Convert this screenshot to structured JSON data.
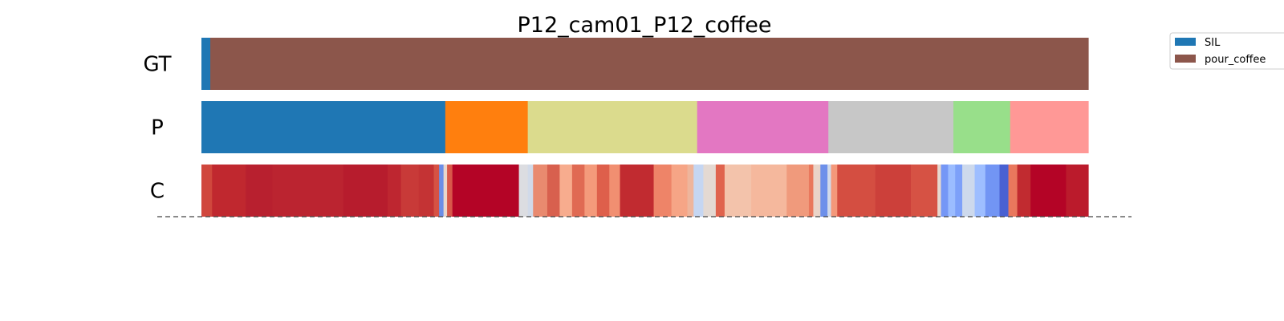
{
  "chart_data": {
    "type": "heatmap",
    "title": "P12_cam01_P12_coffee",
    "x_range": [
      0,
      1
    ],
    "rows": [
      {
        "label": "GT",
        "segments": [
          {
            "start": 0.0,
            "end": 0.01,
            "color": "#1f77b4"
          },
          {
            "start": 0.01,
            "end": 1.0,
            "color": "#8c564b"
          }
        ]
      },
      {
        "label": "P",
        "segments": [
          {
            "start": 0.0,
            "end": 0.275,
            "color": "#1f77b4"
          },
          {
            "start": 0.275,
            "end": 0.368,
            "color": "#ff7f0e"
          },
          {
            "start": 0.368,
            "end": 0.559,
            "color": "#dbdb8d"
          },
          {
            "start": 0.559,
            "end": 0.707,
            "color": "#e377c2"
          },
          {
            "start": 0.707,
            "end": 0.848,
            "color": "#c7c7c7"
          },
          {
            "start": 0.848,
            "end": 0.912,
            "color": "#98df8a"
          },
          {
            "start": 0.912,
            "end": 1.0,
            "color": "#ff9896"
          }
        ]
      },
      {
        "label": "C",
        "segments": [
          {
            "start": 0.0,
            "end": 0.012,
            "color": "#d0473d"
          },
          {
            "start": 0.012,
            "end": 0.05,
            "color": "#c0282f"
          },
          {
            "start": 0.05,
            "end": 0.08,
            "color": "#b8202f"
          },
          {
            "start": 0.08,
            "end": 0.16,
            "color": "#bb2430"
          },
          {
            "start": 0.16,
            "end": 0.21,
            "color": "#b71c2d"
          },
          {
            "start": 0.21,
            "end": 0.225,
            "color": "#be2630"
          },
          {
            "start": 0.225,
            "end": 0.245,
            "color": "#c83a38"
          },
          {
            "start": 0.245,
            "end": 0.262,
            "color": "#c43334"
          },
          {
            "start": 0.262,
            "end": 0.268,
            "color": "#d65244"
          },
          {
            "start": 0.268,
            "end": 0.273,
            "color": "#6b8ee8"
          },
          {
            "start": 0.273,
            "end": 0.277,
            "color": "#e8d6cc"
          },
          {
            "start": 0.277,
            "end": 0.283,
            "color": "#d8584a"
          },
          {
            "start": 0.283,
            "end": 0.358,
            "color": "#b40426"
          },
          {
            "start": 0.358,
            "end": 0.368,
            "color": "#dcdde1"
          },
          {
            "start": 0.368,
            "end": 0.374,
            "color": "#d1dae9"
          },
          {
            "start": 0.374,
            "end": 0.39,
            "color": "#e98a6f"
          },
          {
            "start": 0.39,
            "end": 0.404,
            "color": "#d8604e"
          },
          {
            "start": 0.404,
            "end": 0.418,
            "color": "#f7ac8e"
          },
          {
            "start": 0.418,
            "end": 0.432,
            "color": "#e06a53"
          },
          {
            "start": 0.432,
            "end": 0.446,
            "color": "#f49a7b"
          },
          {
            "start": 0.446,
            "end": 0.46,
            "color": "#de5f4b"
          },
          {
            "start": 0.46,
            "end": 0.472,
            "color": "#f18f71"
          },
          {
            "start": 0.472,
            "end": 0.51,
            "color": "#c12b30"
          },
          {
            "start": 0.51,
            "end": 0.53,
            "color": "#ee8468"
          },
          {
            "start": 0.53,
            "end": 0.548,
            "color": "#f6a586"
          },
          {
            "start": 0.548,
            "end": 0.555,
            "color": "#eeb59c"
          },
          {
            "start": 0.555,
            "end": 0.566,
            "color": "#c5d6f2"
          },
          {
            "start": 0.566,
            "end": 0.58,
            "color": "#e4d9d2"
          },
          {
            "start": 0.58,
            "end": 0.59,
            "color": "#e0634d"
          },
          {
            "start": 0.59,
            "end": 0.62,
            "color": "#f3c3ab"
          },
          {
            "start": 0.62,
            "end": 0.66,
            "color": "#f5b89d"
          },
          {
            "start": 0.66,
            "end": 0.685,
            "color": "#f09a7c"
          },
          {
            "start": 0.685,
            "end": 0.69,
            "color": "#e9785d"
          },
          {
            "start": 0.69,
            "end": 0.698,
            "color": "#ead4c8"
          },
          {
            "start": 0.698,
            "end": 0.706,
            "color": "#6d90ea"
          },
          {
            "start": 0.706,
            "end": 0.71,
            "color": "#d1dae9"
          },
          {
            "start": 0.71,
            "end": 0.717,
            "color": "#f4987a"
          },
          {
            "start": 0.717,
            "end": 0.76,
            "color": "#d44e41"
          },
          {
            "start": 0.76,
            "end": 0.8,
            "color": "#cc403a"
          },
          {
            "start": 0.8,
            "end": 0.83,
            "color": "#d65244"
          },
          {
            "start": 0.83,
            "end": 0.834,
            "color": "#e7d7ce"
          },
          {
            "start": 0.834,
            "end": 0.842,
            "color": "#7597f6"
          },
          {
            "start": 0.842,
            "end": 0.85,
            "color": "#9bbcff"
          },
          {
            "start": 0.85,
            "end": 0.858,
            "color": "#7da0f9"
          },
          {
            "start": 0.858,
            "end": 0.872,
            "color": "#cdd9ec"
          },
          {
            "start": 0.872,
            "end": 0.884,
            "color": "#9ebeff"
          },
          {
            "start": 0.884,
            "end": 0.9,
            "color": "#7295f4"
          },
          {
            "start": 0.9,
            "end": 0.91,
            "color": "#4961d2"
          },
          {
            "start": 0.91,
            "end": 0.92,
            "color": "#e9785d"
          },
          {
            "start": 0.92,
            "end": 0.935,
            "color": "#c12b30"
          },
          {
            "start": 0.935,
            "end": 0.975,
            "color": "#b40426"
          },
          {
            "start": 0.975,
            "end": 1.0,
            "color": "#bb1b2c"
          }
        ]
      }
    ],
    "legend": {
      "position": "top-right",
      "entries": [
        {
          "label": "SIL",
          "color": "#1f77b4"
        },
        {
          "label": "pour_coffee",
          "color": "#8c564b"
        }
      ]
    },
    "baseline": {
      "style": "dashed",
      "color": "#444444"
    }
  }
}
